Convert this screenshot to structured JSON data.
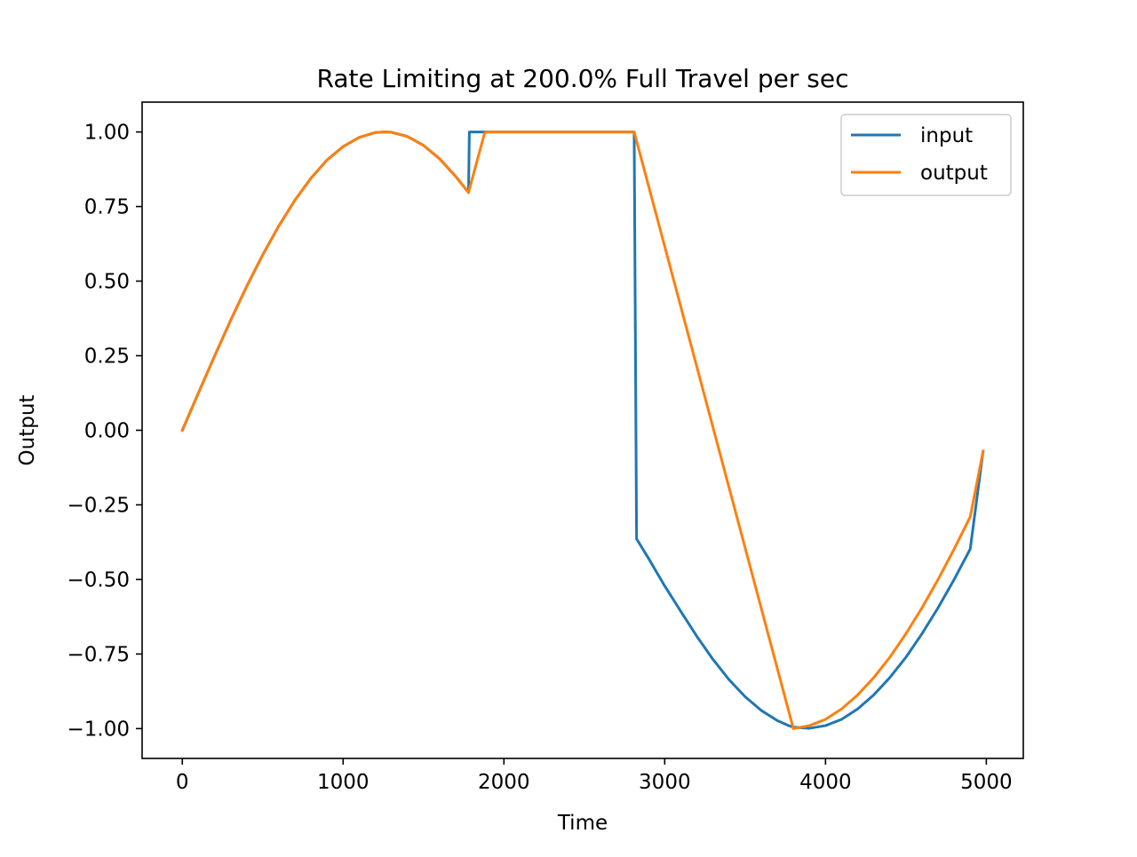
{
  "chart_data": {
    "type": "line",
    "title": "Rate Limiting at 200.0% Full Travel per sec",
    "xlabel": "Time",
    "ylabel": "Output",
    "xlim": [
      -250,
      5230
    ],
    "ylim": [
      -1.1,
      1.1
    ],
    "xticks": [
      0,
      1000,
      2000,
      3000,
      4000,
      5000
    ],
    "xtick_labels": [
      "0",
      "1000",
      "2000",
      "3000",
      "4000",
      "5000"
    ],
    "yticks": [
      1.0,
      0.75,
      0.5,
      0.25,
      0.0,
      -0.25,
      -0.5,
      -0.75,
      -1.0
    ],
    "ytick_labels": [
      "1.00",
      "0.75",
      "0.50",
      "0.25",
      "0.00",
      "−0.25",
      "−0.50",
      "−0.75",
      "−1.00"
    ],
    "grid": false,
    "legend_position": "top-right",
    "series": [
      {
        "name": "input",
        "color": "#1f77b4",
        "x": [
          0,
          100,
          200,
          300,
          400,
          500,
          600,
          700,
          800,
          900,
          1000,
          1100,
          1200,
          1257,
          1300,
          1400,
          1500,
          1600,
          1700,
          1780,
          1785,
          1800,
          1900,
          2000,
          2100,
          2200,
          2300,
          2400,
          2500,
          2600,
          2700,
          2810,
          2825,
          2900,
          3000,
          3100,
          3200,
          3300,
          3400,
          3500,
          3600,
          3700,
          3770,
          3800,
          3900,
          4000,
          4100,
          4200,
          4300,
          4400,
          4500,
          4600,
          4700,
          4800,
          4900,
          4980
        ],
        "y": [
          0.0,
          0.125,
          0.248,
          0.368,
          0.482,
          0.588,
          0.685,
          0.771,
          0.845,
          0.906,
          0.951,
          0.982,
          0.998,
          1.0,
          0.999,
          0.985,
          0.955,
          0.91,
          0.851,
          0.797,
          1.0,
          1.0,
          1.0,
          1.0,
          1.0,
          1.0,
          1.0,
          1.0,
          1.0,
          1.0,
          1.0,
          1.0,
          -0.364,
          -0.43,
          -0.522,
          -0.607,
          -0.691,
          -0.768,
          -0.836,
          -0.893,
          -0.939,
          -0.973,
          -0.99,
          -0.995,
          -0.999,
          -0.99,
          -0.969,
          -0.934,
          -0.887,
          -0.829,
          -0.761,
          -0.682,
          -0.595,
          -0.5,
          -0.398,
          -0.07
        ]
      },
      {
        "name": "output",
        "color": "#ff7f0e",
        "x": [
          0,
          100,
          200,
          300,
          400,
          500,
          600,
          700,
          800,
          900,
          1000,
          1100,
          1200,
          1257,
          1300,
          1400,
          1500,
          1600,
          1700,
          1780,
          1880,
          1900,
          2000,
          2100,
          2200,
          2300,
          2400,
          2500,
          2600,
          2700,
          2810,
          3800,
          3900,
          4000,
          4100,
          4200,
          4300,
          4400,
          4500,
          4600,
          4700,
          4800,
          4900,
          4980
        ],
        "y": [
          0.0,
          0.125,
          0.248,
          0.368,
          0.482,
          0.588,
          0.685,
          0.771,
          0.845,
          0.906,
          0.951,
          0.982,
          0.998,
          1.0,
          0.999,
          0.985,
          0.955,
          0.91,
          0.851,
          0.797,
          0.997,
          1.0,
          1.0,
          1.0,
          1.0,
          1.0,
          1.0,
          1.0,
          1.0,
          1.0,
          1.0,
          -1.0,
          -0.99,
          -0.969,
          -0.934,
          -0.887,
          -0.829,
          -0.761,
          -0.682,
          -0.595,
          -0.5,
          -0.398,
          -0.29,
          -0.07
        ]
      }
    ]
  }
}
